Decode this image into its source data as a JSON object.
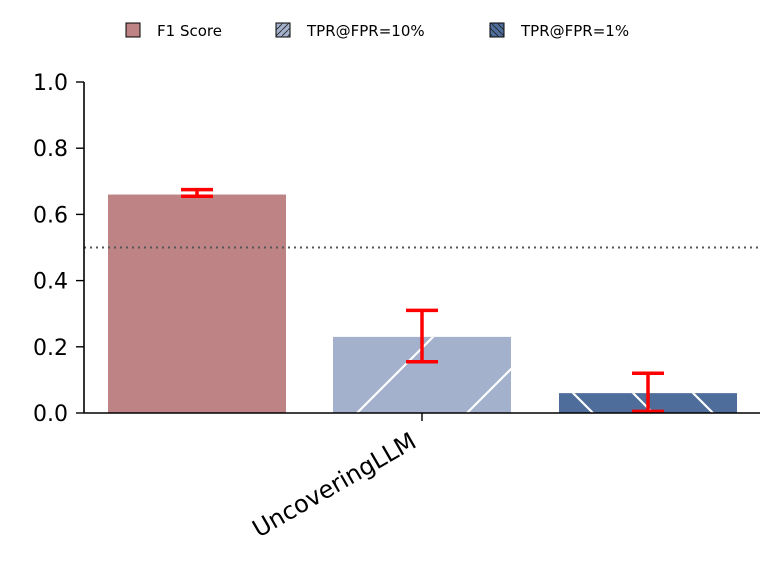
{
  "chart_data": {
    "type": "bar",
    "categories": [
      "UncoveringLLM"
    ],
    "series": [
      {
        "name": "F1 Score",
        "values": [
          0.66
        ],
        "error_low": [
          0.655
        ],
        "error_high": [
          0.675
        ],
        "color": "#be8385",
        "hatch": "none"
      },
      {
        "name": "TPR@FPR=10%",
        "values": [
          0.23
        ],
        "error_low": [
          0.155
        ],
        "error_high": [
          0.31
        ],
        "color": "#a4b1cc",
        "hatch": "/"
      },
      {
        "name": "TPR@FPR=1%",
        "values": [
          0.06
        ],
        "error_low": [
          0.005
        ],
        "error_high": [
          0.12
        ],
        "color": "#4e6d9b",
        "hatch": "\\"
      }
    ],
    "ylim": [
      0,
      1.0
    ],
    "yticks": [
      "0.0",
      "0.2",
      "0.4",
      "0.6",
      "0.8",
      "1.0"
    ],
    "reference_line": 0.5,
    "error_bar_color": "#ff0000",
    "legend_position": "top-center",
    "grid": false
  }
}
